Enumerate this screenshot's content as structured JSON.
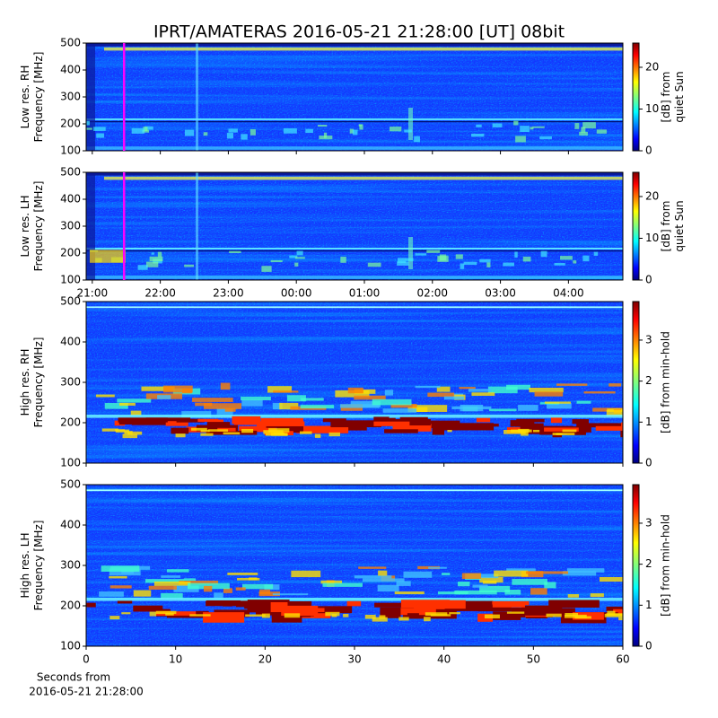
{
  "title": "IPRT/AMATERAS 2016-05-21 21:28:00 [UT]   08bit",
  "chart_data": [
    {
      "type": "heatmap",
      "ylabel": [
        "Low res. RH",
        "Frequency [MHz]"
      ],
      "xlim": [
        20.91,
        28.8
      ],
      "xticks": [
        21,
        22,
        23,
        24,
        25,
        26,
        27,
        28
      ],
      "xticklabels": false,
      "ylim": [
        100,
        500
      ],
      "yticks": [
        100,
        200,
        300,
        400,
        500
      ],
      "marker": 21.467,
      "marker_color": "#ff00ff",
      "style": "low",
      "colorbar": {
        "label": [
          "[dB] from",
          "quiet Sun"
        ],
        "lim": [
          0,
          25.8
        ],
        "ticks": [
          0,
          10,
          20
        ]
      }
    },
    {
      "type": "heatmap",
      "ylabel": [
        "Low res. LH",
        "Frequency [MHz]"
      ],
      "xlim": [
        20.91,
        28.8
      ],
      "xticks": [
        {
          "value": 21,
          "label": "21:00"
        },
        {
          "value": 22,
          "label": "22:00"
        },
        {
          "value": 23,
          "label": "23:00"
        },
        {
          "value": 24,
          "label": "00:00"
        },
        {
          "value": 25,
          "label": "01:00"
        },
        {
          "value": 26,
          "label": "02:00"
        },
        {
          "value": 27,
          "label": "03:00"
        },
        {
          "value": 28,
          "label": "04:00"
        }
      ],
      "xticklabels": true,
      "ylim": [
        100,
        500
      ],
      "yticks": [
        100,
        200,
        300,
        400,
        500
      ],
      "marker": 21.467,
      "marker_color": "#ff00ff",
      "style": "low",
      "colorbar": {
        "label": [
          "[dB] from",
          "quiet Sun"
        ],
        "lim": [
          0,
          25.8
        ],
        "ticks": [
          0,
          10,
          20
        ]
      }
    },
    {
      "type": "heatmap",
      "ylabel": [
        "High res. RH",
        "Frequency [MHz]"
      ],
      "xlim": [
        0,
        60
      ],
      "xticks": [
        0,
        10,
        20,
        30,
        40,
        50,
        60
      ],
      "xticklabels": false,
      "ylim": [
        100,
        500
      ],
      "yticks": [
        100,
        200,
        300,
        400,
        500
      ],
      "style": "high",
      "colorbar": {
        "label": [
          "[dB] from min-hold"
        ],
        "lim": [
          0,
          3.94
        ],
        "ticks": [
          0,
          1,
          2,
          3
        ]
      }
    },
    {
      "type": "heatmap",
      "ylabel": [
        "High res. LH",
        "Frequency [MHz]"
      ],
      "xlim": [
        0,
        60
      ],
      "xticks": [
        0,
        10,
        20,
        30,
        40,
        50,
        60
      ],
      "xticklabels": true,
      "xlabel": [
        "Seconds from",
        "2016-05-21 21:28:00"
      ],
      "ylim": [
        100,
        500
      ],
      "yticks": [
        100,
        200,
        300,
        400,
        500
      ],
      "style": "high",
      "colorbar": {
        "label": [
          "[dB] from min-hold"
        ],
        "lim": [
          0,
          3.94
        ],
        "ticks": [
          0,
          1,
          2,
          3
        ]
      }
    }
  ]
}
